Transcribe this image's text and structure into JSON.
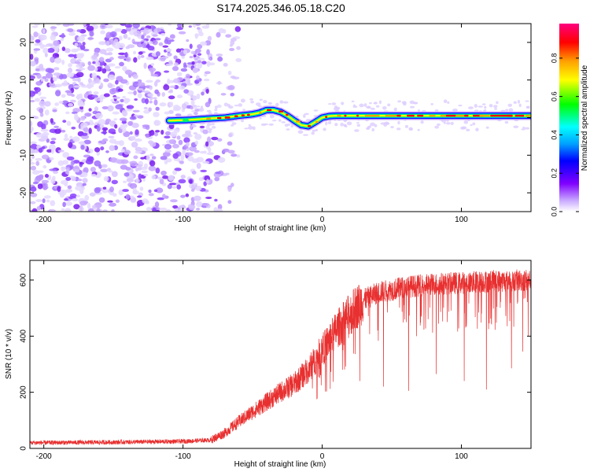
{
  "title": "S174.2025.346.05.18.C20",
  "chart_data": [
    {
      "type": "heatmap",
      "name": "spectrogram",
      "xlabel": "Height of straight line (km)",
      "ylabel": "Frequency (Hz)",
      "xlim": [
        -210,
        150
      ],
      "ylim": [
        -25,
        25
      ],
      "xticks": [
        -200,
        -100,
        0,
        100
      ],
      "yticks": [
        -20,
        -10,
        0,
        10,
        20
      ],
      "noise_region_x": [
        -210,
        -80
      ],
      "signal_line": {
        "x": [
          -110,
          -95,
          -80,
          -70,
          -60,
          -50,
          -45,
          -40,
          -35,
          -30,
          -25,
          -20,
          -15,
          -10,
          -5,
          0,
          5,
          10,
          20,
          40,
          60,
          80,
          100,
          120,
          150
        ],
        "y": [
          -0.8,
          -0.6,
          -0.2,
          0.0,
          0.5,
          0.9,
          1.3,
          2.0,
          2.0,
          1.5,
          0.5,
          -0.8,
          -2.0,
          -2.3,
          -1.2,
          0.0,
          0.4,
          0.5,
          0.5,
          0.5,
          0.5,
          0.5,
          0.5,
          0.5,
          0.5
        ]
      },
      "colorbar": {
        "label": "Normalized spectral amplitude",
        "ticks": [
          0.0,
          0.2,
          0.4,
          0.6,
          0.8
        ],
        "tick_labels": [
          "0.0",
          "0.2",
          "0.4",
          "0.6",
          "0.8"
        ],
        "range": [
          0,
          0.98
        ],
        "colors": [
          "#ffffff",
          "#c8a8ff",
          "#8000ff",
          "#0000ff",
          "#00a0ff",
          "#00ffff",
          "#00ff00",
          "#ffff00",
          "#ffa000",
          "#ff0000",
          "#ff0080"
        ]
      }
    },
    {
      "type": "line",
      "name": "snr",
      "xlabel": "Height of straight line (km)",
      "ylabel": "SNR (10 * v/v)",
      "xlim": [
        -210,
        150
      ],
      "ylim": [
        0,
        670
      ],
      "xticks": [
        -200,
        -100,
        0,
        100
      ],
      "yticks": [
        0,
        200,
        400,
        600
      ],
      "color": "#e83030",
      "trend": {
        "x": [
          -210,
          -150,
          -100,
          -80,
          -70,
          -60,
          -50,
          -40,
          -30,
          -20,
          -10,
          0,
          10,
          20,
          30,
          40,
          60,
          80,
          100,
          120,
          150
        ],
        "y": [
          20,
          22,
          25,
          30,
          55,
          95,
          130,
          165,
          200,
          230,
          280,
          350,
          420,
          480,
          530,
          555,
          575,
          585,
          590,
          595,
          600
        ]
      },
      "dips": [
        {
          "x": 27,
          "y": 240
        },
        {
          "x": 44,
          "y": 220
        },
        {
          "x": 62,
          "y": 205
        },
        {
          "x": 82,
          "y": 265
        },
        {
          "x": 102,
          "y": 240
        },
        {
          "x": 118,
          "y": 210
        },
        {
          "x": 136,
          "y": 285
        },
        {
          "x": 144,
          "y": 345
        },
        {
          "x": 148,
          "y": 400
        }
      ]
    }
  ]
}
